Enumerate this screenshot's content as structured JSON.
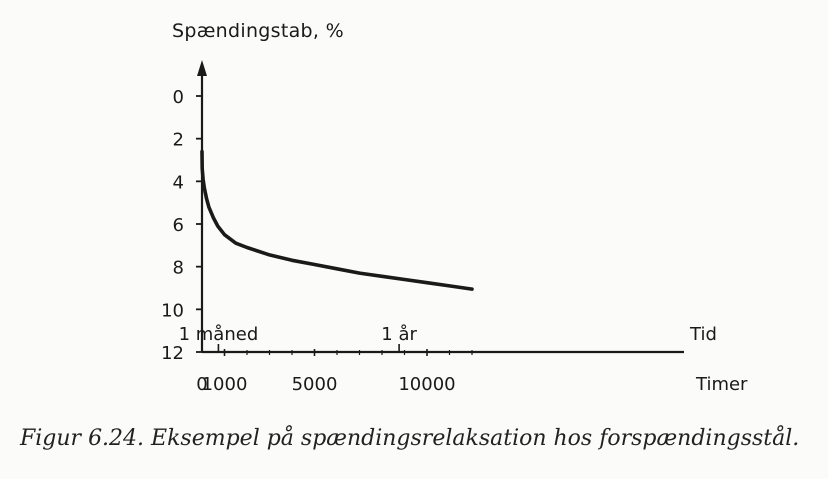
{
  "chart_data": {
    "type": "line",
    "ylabel": "Spændingstab, %",
    "xlabel": "Timer",
    "x_secondary_label": "Tid",
    "yticks": [
      0,
      2,
      4,
      6,
      8,
      10,
      12
    ],
    "ylim": [
      0,
      12
    ],
    "y_inverted": true,
    "xticks": [
      0,
      1000,
      5000,
      10000
    ],
    "xlim": [
      0,
      12500
    ],
    "annotations": [
      {
        "text": "1 måned",
        "x": 730
      },
      {
        "text": "1 år",
        "x": 8760
      }
    ],
    "series": [
      {
        "x": [
          0,
          10,
          50,
          100,
          200,
          300,
          500,
          700,
          1000,
          1500,
          2000,
          3000,
          4000,
          5000,
          6000,
          7000,
          8000,
          9000,
          10000,
          11000,
          12000
        ],
        "y": [
          2.6,
          3.4,
          3.9,
          4.3,
          4.8,
          5.2,
          5.7,
          6.1,
          6.5,
          6.9,
          7.1,
          7.45,
          7.7,
          7.9,
          8.1,
          8.3,
          8.45,
          8.6,
          8.75,
          8.9,
          9.05
        ]
      }
    ]
  },
  "caption": "Figur 6.24. Eksempel på spændingsrelaksation hos forspændingsstål."
}
